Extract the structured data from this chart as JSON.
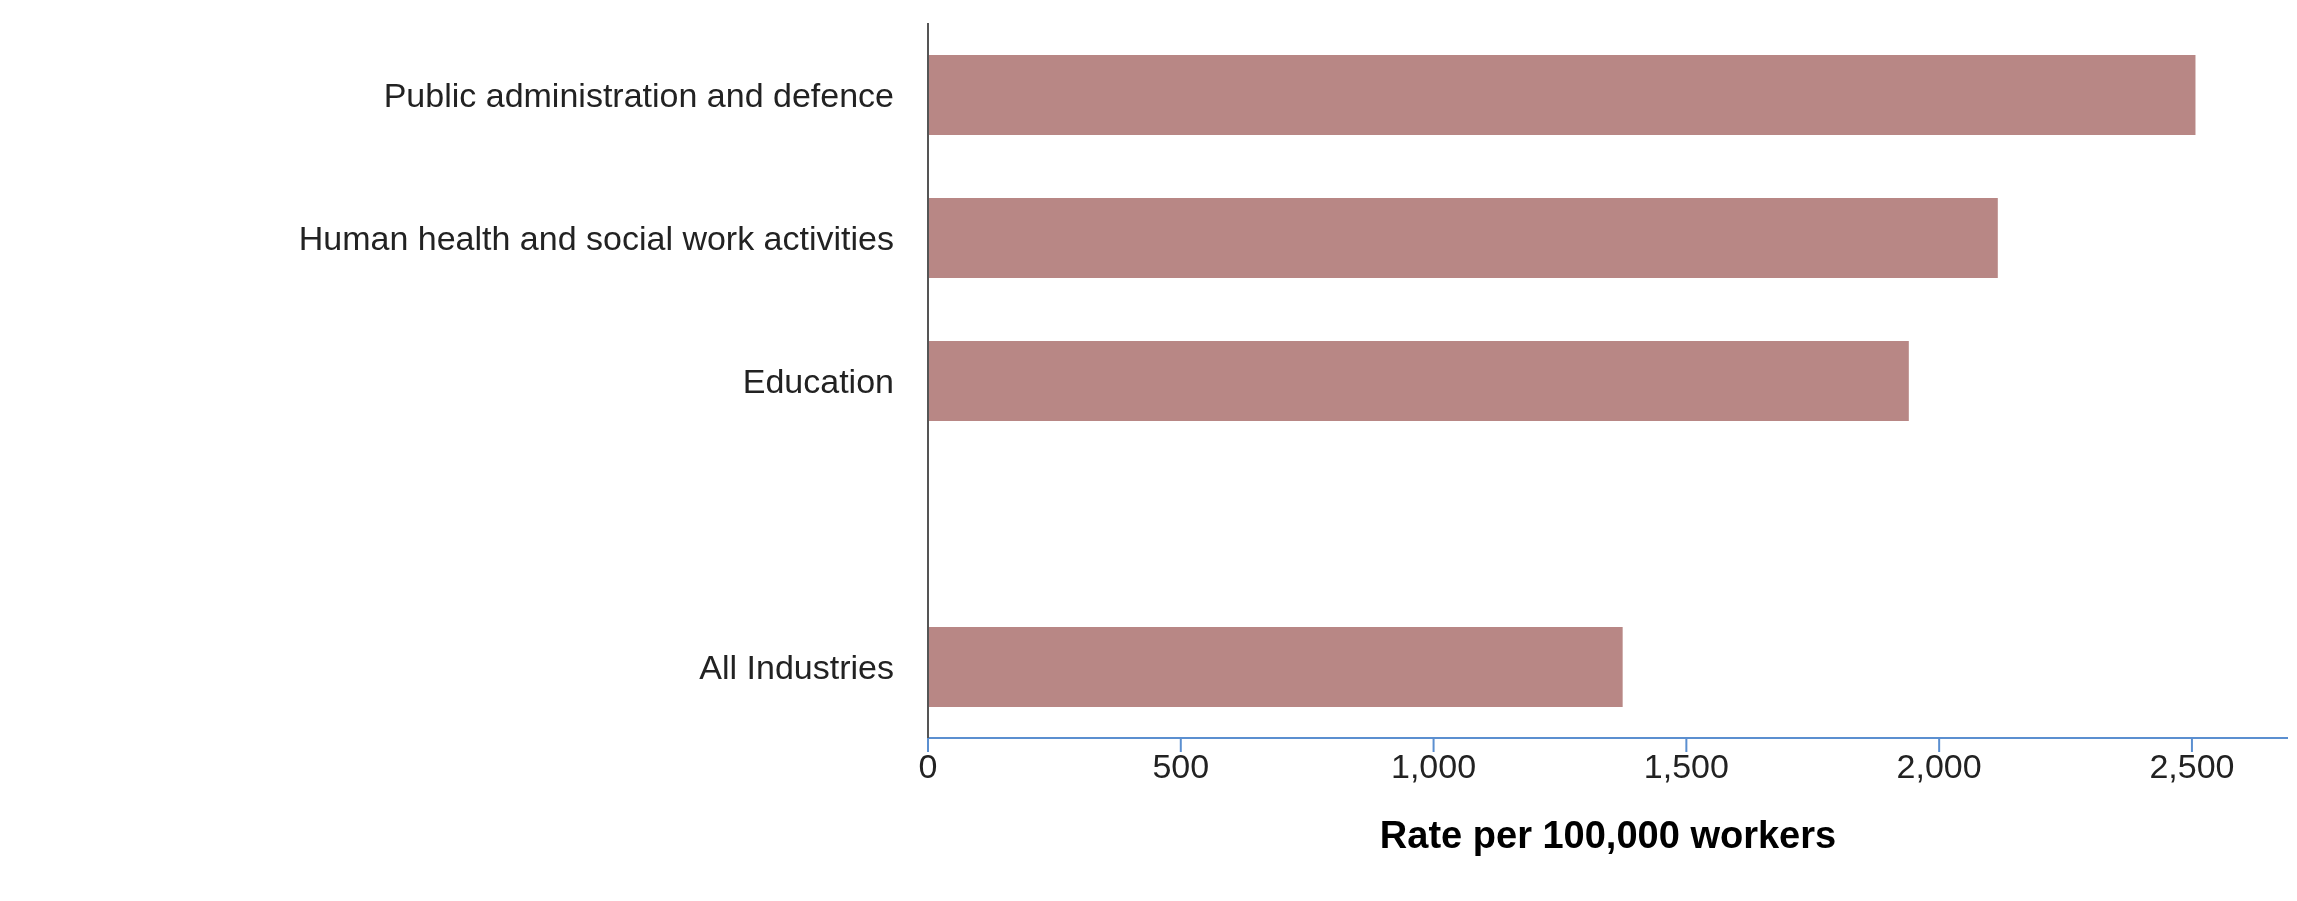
{
  "chart_data": {
    "type": "bar",
    "orientation": "horizontal",
    "xlabel": "Rate per 100,000 workers",
    "categories": [
      "Public administration and defence",
      "Human health and social work activities",
      "Education",
      null,
      "All Industries"
    ],
    "values": [
      2507,
      2116,
      1940,
      null,
      1374
    ],
    "color": "#b88785",
    "xlim": [
      0,
      2690
    ],
    "xticks": [
      0,
      {
        "value": 500,
        "label": "500"
      },
      {
        "value": 1000,
        "label": "1,000"
      },
      {
        "value": 1500,
        "label": "1,500"
      },
      {
        "value": 2000,
        "label": "2,000"
      },
      {
        "value": 2500,
        "label": "2,500"
      }
    ],
    "grid": false,
    "legend": false
  }
}
